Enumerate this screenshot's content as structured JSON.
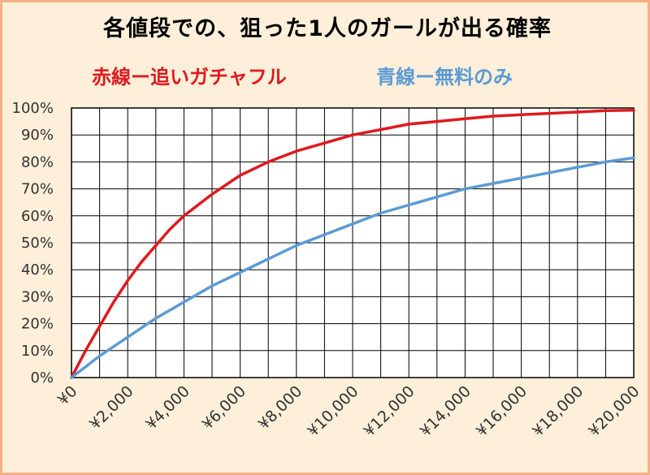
{
  "title": "各値段での、狙った1人のガールが出る確率",
  "legend": [
    {
      "label": "赤線ー追いガチャフル",
      "color": "#e0191f"
    },
    {
      "label": "青線ー無料のみ",
      "color": "#5b9bd5"
    }
  ],
  "chart_data": {
    "type": "line",
    "title": "各値段での、狙った1人のガールが出る確率",
    "xlabel": "",
    "ylabel": "",
    "xlim": [
      0,
      20000
    ],
    "ylim": [
      0,
      100
    ],
    "x_ticks": [
      0,
      2000,
      4000,
      6000,
      8000,
      10000,
      12000,
      14000,
      16000,
      18000,
      20000
    ],
    "x_tick_labels": [
      "¥0",
      "¥2,000",
      "¥4,000",
      "¥6,000",
      "¥8,000",
      "¥10,000",
      "¥12,000",
      "¥14,000",
      "¥16,000",
      "¥18,000",
      "¥20,000"
    ],
    "y_ticks": [
      0,
      10,
      20,
      30,
      40,
      50,
      60,
      70,
      80,
      90,
      100
    ],
    "y_tick_labels": [
      "0%",
      "10%",
      "20%",
      "30%",
      "40%",
      "50%",
      "60%",
      "70%",
      "80%",
      "90%",
      "100%"
    ],
    "grid": true,
    "legend_position": "top",
    "series": [
      {
        "name": "赤線ー追いガチャフル",
        "color": "#e0191f",
        "x": [
          0,
          500,
          1000,
          1500,
          2000,
          2500,
          3000,
          3500,
          4000,
          5000,
          6000,
          7000,
          8000,
          9000,
          10000,
          11000,
          12000,
          13000,
          14000,
          15000,
          16000,
          17000,
          18000,
          19000,
          20000
        ],
        "y": [
          0,
          10,
          19,
          28,
          36,
          43,
          49,
          55,
          60,
          68,
          75,
          80,
          84,
          87,
          90,
          92,
          94,
          95,
          96,
          97,
          97.5,
          98,
          98.5,
          99,
          99.2
        ]
      },
      {
        "name": "青線ー無料のみ",
        "color": "#5b9bd5",
        "x": [
          0,
          500,
          1000,
          2000,
          3000,
          4000,
          5000,
          6000,
          7000,
          8000,
          9000,
          10000,
          11000,
          12000,
          13000,
          14000,
          15000,
          16000,
          17000,
          18000,
          19000,
          20000
        ],
        "y": [
          0,
          4,
          8,
          15,
          22,
          28,
          34,
          39,
          44,
          49,
          53,
          57,
          61,
          64,
          67,
          70,
          72,
          74,
          76,
          78,
          80,
          81.5
        ]
      }
    ]
  }
}
